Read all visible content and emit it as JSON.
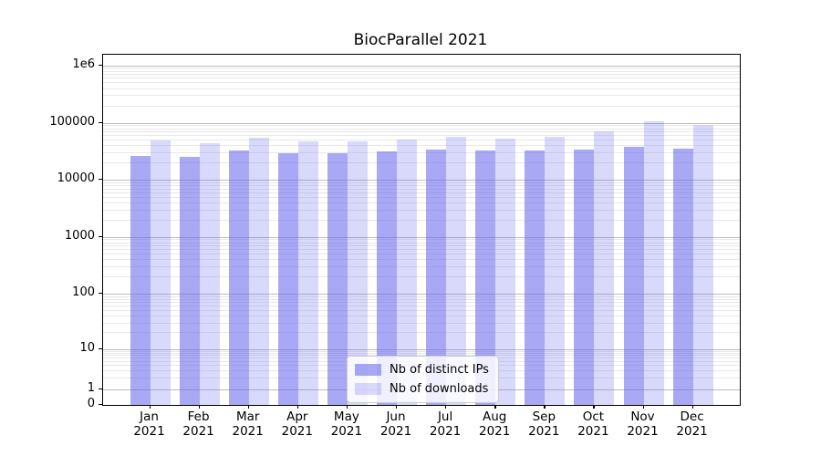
{
  "chart": {
    "title": "BiocParallel 2021"
  },
  "chart_data": {
    "type": "bar",
    "title": "BiocParallel 2021",
    "year_label": "2021",
    "categories": [
      "Jan",
      "Feb",
      "Mar",
      "Apr",
      "May",
      "Jun",
      "Jul",
      "Aug",
      "Sep",
      "Oct",
      "Nov",
      "Dec"
    ],
    "series": [
      {
        "name": "Nb of distinct IPs",
        "color": "rgba(102,102,238,0.57)",
        "values": [
          26000,
          25500,
          32500,
          29500,
          29000,
          31000,
          34000,
          32000,
          33000,
          34000,
          37500,
          34500
        ]
      },
      {
        "name": "Nb of downloads",
        "color": "rgba(102,102,238,0.25)",
        "values": [
          48000,
          44000,
          54500,
          47500,
          46500,
          51000,
          56000,
          53000,
          56500,
          71000,
          105000,
          90000
        ]
      }
    ],
    "yscale": "symlog",
    "xlabel": "",
    "ylabel": "",
    "ylim": [
      0,
      1500000
    ],
    "y_ticks": [
      {
        "label": "0",
        "value": 0
      },
      {
        "label": "1",
        "value": 1
      },
      {
        "label": "10",
        "value": 10
      },
      {
        "label": "100",
        "value": 100
      },
      {
        "label": "1000",
        "value": 1000
      },
      {
        "label": "10000",
        "value": 10000
      },
      {
        "label": "100000",
        "value": 100000
      },
      {
        "label": "1e6",
        "value": 1000000
      }
    ],
    "grid": true,
    "legend_position": "lower center",
    "colors": {
      "bar_base": "#6666ee",
      "major_grid": "#bdbdbd",
      "minor_grid": "#e8e8e8",
      "spine": "#000000",
      "text": "#000000"
    }
  }
}
